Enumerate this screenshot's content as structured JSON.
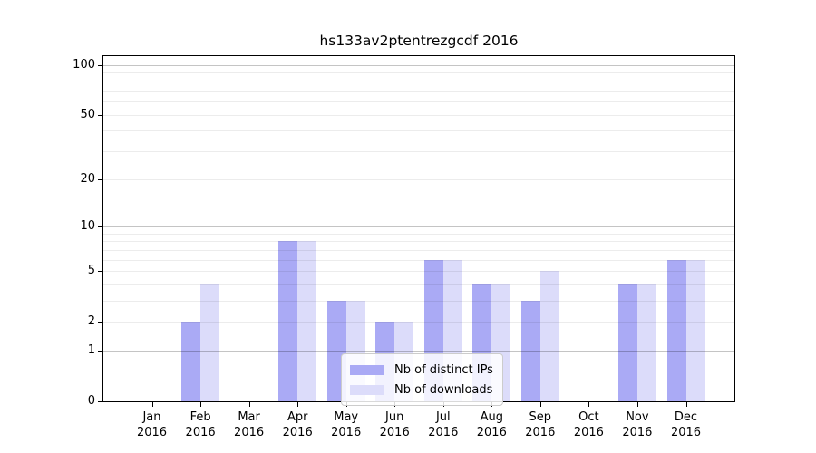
{
  "chart_data": {
    "type": "bar",
    "title": "hs133av2ptentrezgcdf 2016",
    "year_label": "2016",
    "categories": [
      "Jan",
      "Feb",
      "Mar",
      "Apr",
      "May",
      "Jun",
      "Jul",
      "Aug",
      "Sep",
      "Oct",
      "Nov",
      "Dec"
    ],
    "series": [
      {
        "name": "Nb of distinct IPs",
        "color": "#aaaaf5",
        "values": [
          0,
          2,
          0,
          8,
          3,
          2,
          6,
          4,
          3,
          0,
          4,
          6
        ]
      },
      {
        "name": "Nb of downloads",
        "color": "#dcdcfa",
        "values": [
          0,
          4,
          0,
          8,
          3,
          2,
          6,
          4,
          5,
          0,
          4,
          6
        ]
      }
    ],
    "yticks": [
      0,
      1,
      2,
      5,
      10,
      20,
      50,
      100
    ],
    "gridlines": {
      "minor": [
        2,
        3,
        4,
        5,
        6,
        7,
        8,
        9,
        20,
        30,
        40,
        50,
        60,
        70,
        80,
        90
      ],
      "major": [
        1,
        10,
        100
      ]
    },
    "scale": "log10(1+y)",
    "ylim": [
      0,
      113
    ],
    "xlabel": "",
    "ylabel": "",
    "legend_position": "bottom-center",
    "grid": "on"
  }
}
